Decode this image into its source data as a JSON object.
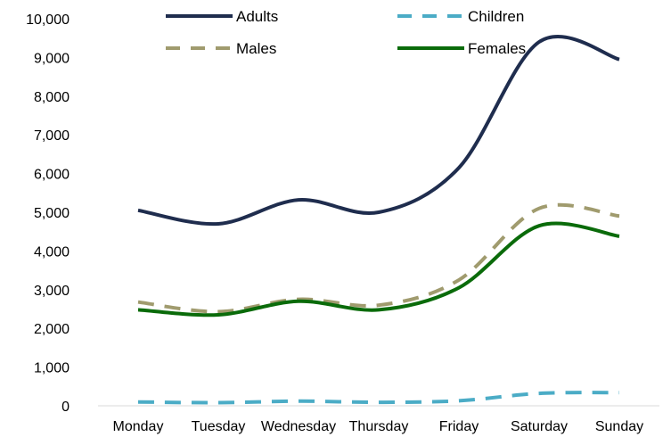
{
  "chart_data": {
    "type": "line",
    "title": "",
    "xlabel": "",
    "ylabel": "",
    "categories": [
      "Monday",
      "Tuesday",
      "Wednesday",
      "Thursday",
      "Friday",
      "Saturday",
      "Sunday"
    ],
    "ylim": [
      0,
      10000
    ],
    "yticks": [
      "0",
      "1,000",
      "2,000",
      "3,000",
      "4,000",
      "5,000",
      "6,000",
      "7,000",
      "8,000",
      "9,000",
      "10,000"
    ],
    "grid": false,
    "legend_position": "top",
    "smooth": true,
    "series": [
      {
        "name": "Adults",
        "color": "#1f2d4e",
        "dash": "solid",
        "values": [
          5050,
          4700,
          5320,
          5000,
          6150,
          9400,
          8950
        ]
      },
      {
        "name": "Children",
        "color": "#4bacc6",
        "dash": "dashed",
        "values": [
          100,
          80,
          120,
          90,
          130,
          320,
          340
        ]
      },
      {
        "name": "Males",
        "color": "#a09b6e",
        "dash": "dashed",
        "values": [
          2680,
          2430,
          2750,
          2600,
          3250,
          5100,
          4900
        ]
      },
      {
        "name": "Females",
        "color": "#0a6b0a",
        "dash": "solid",
        "values": [
          2480,
          2350,
          2700,
          2480,
          3050,
          4650,
          4380
        ]
      }
    ]
  }
}
